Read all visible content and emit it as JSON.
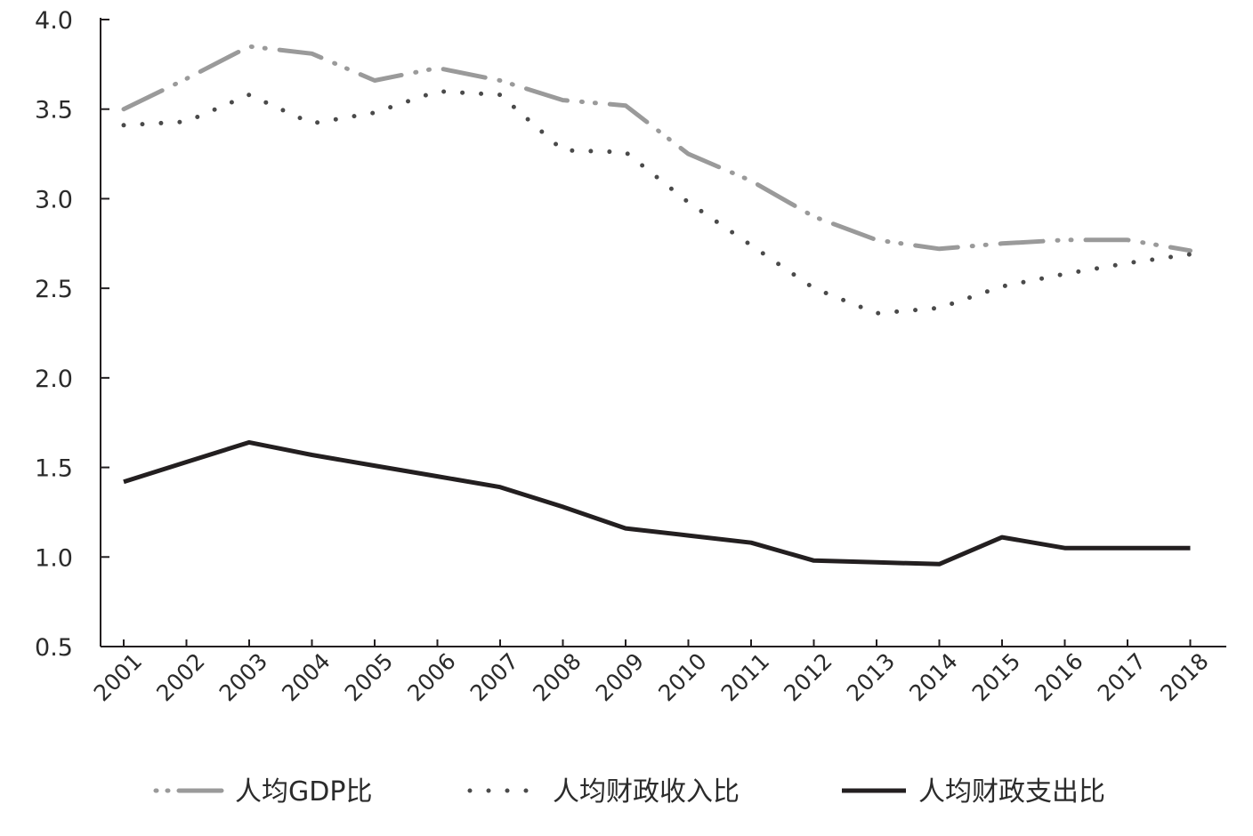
{
  "chart_data": {
    "type": "line",
    "title": "",
    "xlabel": "",
    "ylabel": "",
    "categories": [
      "2001",
      "2002",
      "2003",
      "2004",
      "2005",
      "2006",
      "2007",
      "2008",
      "2009",
      "2010",
      "2011",
      "2012",
      "2013",
      "2014",
      "2015",
      "2016",
      "2017",
      "2018"
    ],
    "ylim": [
      0.5,
      4.0
    ],
    "yticks": [
      "0.5",
      "1.0",
      "1.5",
      "2.0",
      "2.5",
      "3.0",
      "3.5",
      "4.0"
    ],
    "grid": false,
    "legend_position": "bottom",
    "series": [
      {
        "name": "人均GDP比",
        "style": "dash-dot",
        "color": "#9a9a9a",
        "values": [
          3.5,
          3.67,
          3.85,
          3.81,
          3.66,
          3.73,
          3.66,
          3.55,
          3.52,
          3.25,
          3.1,
          2.9,
          2.77,
          2.72,
          2.75,
          2.77,
          2.77,
          2.71
        ]
      },
      {
        "name": "人均财政收入比",
        "style": "dotted",
        "color": "#4a4a4a",
        "values": [
          3.41,
          3.43,
          3.58,
          3.42,
          3.48,
          3.6,
          3.58,
          3.27,
          3.26,
          2.98,
          2.74,
          2.5,
          2.36,
          2.39,
          2.51,
          2.58,
          2.64,
          2.69
        ]
      },
      {
        "name": "人均财政支出比",
        "style": "solid",
        "color": "#231f20",
        "values": [
          1.42,
          1.53,
          1.64,
          1.57,
          1.51,
          1.45,
          1.39,
          1.28,
          1.16,
          1.12,
          1.08,
          0.98,
          0.97,
          0.96,
          1.11,
          1.05,
          1.05,
          1.05
        ]
      }
    ]
  }
}
